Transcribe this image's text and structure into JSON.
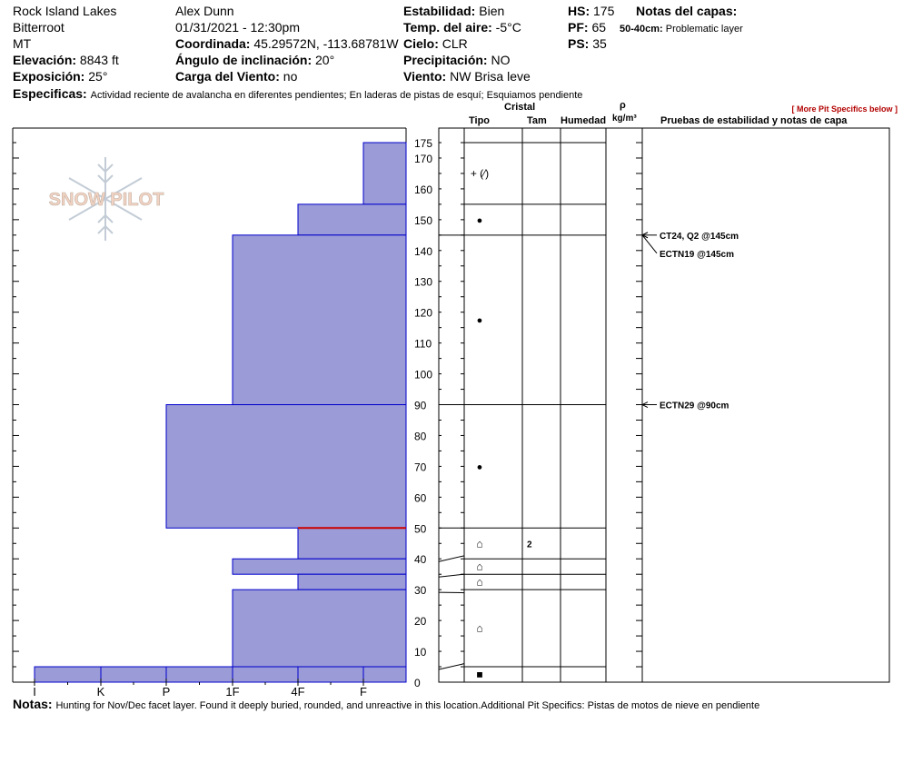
{
  "header": {
    "location": "Rock Island Lakes",
    "range": "Bitterroot",
    "state": "MT",
    "elevation_label": "Elevación:",
    "elevation_value": "8843 ft",
    "aspect_label": "Exposición:",
    "aspect_value": "25°",
    "observer": "Alex Dunn",
    "datetime": "01/31/2021 - 12:30pm",
    "coord_label": "Coordinada:",
    "coord_value": "45.29572N, -113.68781W",
    "slope_label": "Ángulo de inclinación:",
    "slope_value": "20°",
    "windload_label": "Carga del Viento:",
    "windload_value": "no",
    "stability_label": "Estabilidad:",
    "stability_value": "Bien",
    "airtemp_label": "Temp. del aire:",
    "airtemp_value": "-5°C",
    "sky_label": "Cielo:",
    "sky_value": "CLR",
    "precip_label": "Precipitación:",
    "precip_value": "NO",
    "wind_label": "Viento:",
    "wind_value": "NW Brisa leve",
    "hs_label": "HS:",
    "hs_value": "175",
    "pf_label": "PF:",
    "pf_value": "65",
    "ps_label": "PS:",
    "ps_value": "35",
    "layer_notes_label": "Notas del capas:",
    "layer_note_range": "50-40cm:",
    "layer_note_text": "Problematic layer",
    "specifics_label": "Especificas:",
    "specifics_text": "Actividad reciente de avalancha en diferentes pendientes;  En laderas de pistas de esquí;  Esquiamos pendiente",
    "more_specifics": "[ More Pit Specifics below ]"
  },
  "columns": {
    "crystal": "Cristal",
    "type": "Tipo",
    "size": "Tam",
    "moisture": "Humedad",
    "rho": "ρ",
    "density_unit": "kg/m³",
    "tests": "Pruebas de estabilidad y notas de capa"
  },
  "logo_text": "SNOW PILOT",
  "notes": {
    "label": "Notas:",
    "text": "Hunting for Nov/Dec facet layer. Found it deeply buried, rounded, and unreactive in this location.Additional Pit Specifics: Pistas de motos de nieve en pendiente"
  },
  "colors": {
    "fill": "#9b9bd7",
    "edge": "#0000cc",
    "red_line": "#cc0000"
  },
  "chart_data": {
    "type": "bar",
    "orientation": "horizontal",
    "x_categories": [
      "I",
      "K",
      "P",
      "1F",
      "4F",
      "F"
    ],
    "x_scale_note": "hardness, reversed (I at left, F at right)",
    "y_ticks_labeled": [
      0,
      10,
      20,
      30,
      40,
      50,
      60,
      70,
      80,
      90,
      100,
      110,
      120,
      130,
      140,
      150,
      160,
      170,
      175
    ],
    "ylim": [
      0,
      175
    ],
    "hardness_layers": [
      {
        "bottom": 155,
        "top": 175,
        "hardness": "F"
      },
      {
        "bottom": 145,
        "top": 155,
        "hardness": "4F"
      },
      {
        "bottom": 90,
        "top": 145,
        "hardness": "1F"
      },
      {
        "bottom": 50,
        "top": 90,
        "hardness": "P"
      },
      {
        "bottom": 40,
        "top": 50,
        "hardness": "4F"
      },
      {
        "bottom": 35,
        "top": 40,
        "hardness": "1F"
      },
      {
        "bottom": 30,
        "top": 35,
        "hardness": "4F"
      },
      {
        "bottom": 5,
        "top": 30,
        "hardness": "1F"
      },
      {
        "bottom": 0,
        "top": 5,
        "hardness": "I"
      }
    ],
    "problem_layer_depth": 50,
    "crystal_layers": [
      {
        "bottom": 155,
        "top": 175,
        "symbol": "+ (⁄)",
        "size": ""
      },
      {
        "bottom": 145,
        "top": 155,
        "symbol": "●",
        "size": ""
      },
      {
        "bottom": 90,
        "top": 145,
        "symbol": "●",
        "size": ""
      },
      {
        "bottom": 50,
        "top": 90,
        "symbol": "●",
        "size": ""
      },
      {
        "bottom": 40,
        "top": 50,
        "symbol": "⌂",
        "size": "2"
      },
      {
        "bottom": 35,
        "top": 40,
        "symbol": "⌂",
        "size": ""
      },
      {
        "bottom": 30,
        "top": 35,
        "symbol": "⌂",
        "size": ""
      },
      {
        "bottom": 5,
        "top": 30,
        "symbol": "⌂",
        "size": ""
      },
      {
        "bottom": 0,
        "top": 5,
        "symbol": "■",
        "size": ""
      }
    ],
    "stability_tests": [
      {
        "depth": 145,
        "label": "CT24, Q2 @145cm"
      },
      {
        "depth": 145,
        "label": "ECTN19 @145cm"
      },
      {
        "depth": 90,
        "label": "ECTN29 @90cm"
      }
    ]
  }
}
